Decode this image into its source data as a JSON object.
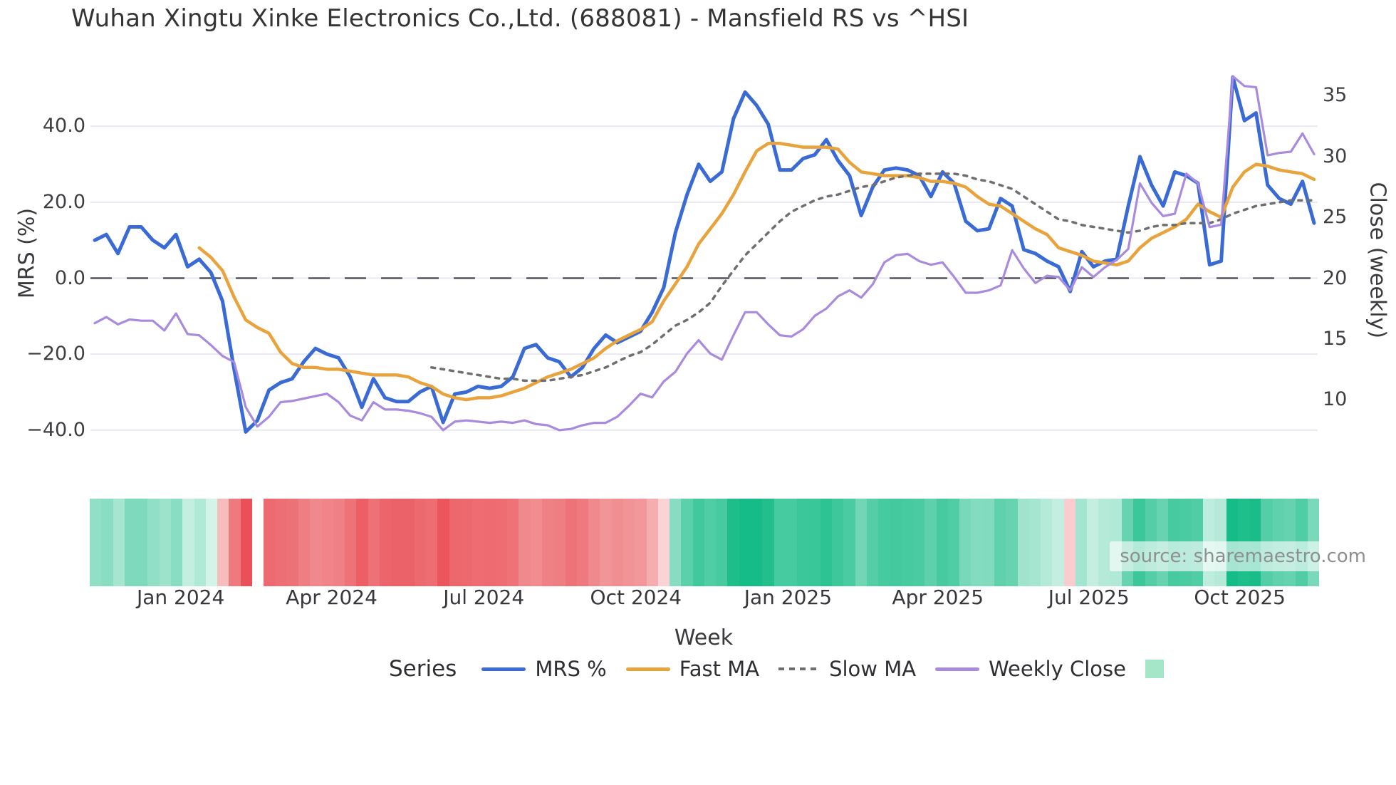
{
  "title": "Wuhan Xingtu Xinke Electronics Co.,Ltd. (688081) - Mansfield RS vs ^HSI",
  "watermark": "source: sharemaestro.com",
  "axes": {
    "left": {
      "title": "MRS (%)",
      "ticks": [
        {
          "label": "40.0",
          "value": 40
        },
        {
          "label": "20.0",
          "value": 20
        },
        {
          "label": "0.0",
          "value": 0
        },
        {
          "label": "−20.0",
          "value": -20
        },
        {
          "label": "−40.0",
          "value": -40
        }
      ]
    },
    "right": {
      "title": "Close (weekly)",
      "ticks": [
        {
          "label": "35",
          "value": 35
        },
        {
          "label": "30",
          "value": 30
        },
        {
          "label": "25",
          "value": 25
        },
        {
          "label": "20",
          "value": 20
        },
        {
          "label": "15",
          "value": 15
        },
        {
          "label": "10",
          "value": 10
        }
      ]
    },
    "x": {
      "title": "Week",
      "ticks": [
        {
          "label": "Jan 2024",
          "week": 7.4
        },
        {
          "label": "Apr 2024",
          "week": 20.4
        },
        {
          "label": "Jul 2024",
          "week": 33.5
        },
        {
          "label": "Oct 2024",
          "week": 46.6
        },
        {
          "label": "Jan 2025",
          "week": 59.7
        },
        {
          "label": "Apr 2025",
          "week": 72.6
        },
        {
          "label": "Jul 2025",
          "week": 85.6
        },
        {
          "label": "Oct 2025",
          "week": 98.6
        }
      ]
    }
  },
  "legend": {
    "title": "Series",
    "items": [
      {
        "label": "MRS %",
        "color": "#3A6BD5",
        "style": "line"
      },
      {
        "label": "Fast MA",
        "color": "#E8A33C",
        "style": "line"
      },
      {
        "label": "Slow MA",
        "color": "#6F6F6F",
        "style": "dotted"
      },
      {
        "label": "Weekly Close",
        "color": "#A88BDC",
        "style": "line"
      },
      {
        "label": "",
        "color": "#A5E6C9",
        "style": "square"
      }
    ]
  },
  "chart_data": {
    "type": "line",
    "title": "Wuhan Xingtu Xinke Electronics Co.,Ltd. (688081) - Mansfield RS vs ^HSI",
    "xlabel": "Week",
    "ylabel_left": "MRS (%)",
    "ylabel_right": "Close (weekly)",
    "x_unit": "weekly index, ~Nov 2023 to ~Nov 2025",
    "n_weeks": 106,
    "grid": true,
    "zero_line_left_axis": true,
    "legend_position": "bottom",
    "series": [
      {
        "name": "MRS %",
        "axis": "left",
        "color": "#3A6BD5",
        "width": 5,
        "style": "solid",
        "values": [
          10,
          11.5,
          6.5,
          13.5,
          13.5,
          10,
          8,
          11.5,
          3,
          5,
          1.5,
          -6,
          -24,
          -40.5,
          -37.5,
          -29.5,
          -27.5,
          -26.5,
          -22,
          -18.5,
          -20,
          -21,
          -26,
          -34,
          -26.5,
          -31.5,
          -32.5,
          -32.5,
          -30,
          -28.5,
          -38,
          -30.5,
          -30,
          -28.5,
          -29,
          -28.5,
          -26,
          -18.5,
          -17.5,
          -21,
          -22,
          -26,
          -23.5,
          -18.5,
          -15,
          -17,
          -15.5,
          -14,
          -9,
          -2.5,
          12,
          22,
          30,
          25.5,
          28,
          42,
          49,
          45.5,
          40.5,
          28.5,
          28.5,
          31.5,
          32.5,
          36.5,
          31,
          27,
          16.5,
          24,
          28.5,
          29,
          28.5,
          27,
          21.5,
          28,
          25,
          15,
          12.5,
          13,
          21,
          19,
          7.5,
          6.5,
          4.5,
          3,
          -3.5,
          7,
          3,
          4.5,
          5,
          19,
          32,
          24.5,
          19,
          28,
          27,
          25,
          3.5,
          4.5,
          53,
          41.5,
          43.5,
          24.5,
          21,
          19.5,
          25.5,
          14.5
        ]
      },
      {
        "name": "Fast MA",
        "axis": "left",
        "color": "#E8A33C",
        "width": 4.5,
        "style": "solid",
        "values": [
          null,
          null,
          null,
          null,
          null,
          null,
          null,
          null,
          null,
          8,
          5.5,
          2,
          -5,
          -11,
          -13,
          -14.5,
          -19.5,
          -22.5,
          -23.5,
          -23.5,
          -24,
          -24,
          -24.5,
          -25,
          -25.5,
          -25.5,
          -25.5,
          -26,
          -27.5,
          -28.5,
          -30.5,
          -31.5,
          -32,
          -31.5,
          -31.5,
          -31,
          -30,
          -29,
          -27.5,
          -26,
          -25,
          -24,
          -22.5,
          -21,
          -18.5,
          -16.5,
          -15,
          -13.5,
          -11.5,
          -6,
          -1.5,
          3,
          9,
          13,
          17,
          22,
          28,
          33.5,
          35.5,
          35.5,
          35,
          34.5,
          34.5,
          34.5,
          34,
          30.5,
          28,
          27.5,
          27,
          27,
          27,
          26.5,
          25.5,
          25.5,
          25,
          24,
          21.5,
          19.5,
          19,
          17,
          15,
          13,
          11.5,
          8,
          7,
          6,
          4.5,
          4,
          3.5,
          4.5,
          8,
          10.5,
          12,
          13.5,
          15.5,
          19.5,
          17.5,
          16,
          24,
          28,
          30,
          29.5,
          28.5,
          28,
          27.5,
          26
        ]
      },
      {
        "name": "Slow MA",
        "axis": "left",
        "color": "#6F6F6F",
        "width": 3.5,
        "style": "dotted",
        "values": [
          null,
          null,
          null,
          null,
          null,
          null,
          null,
          null,
          null,
          null,
          null,
          null,
          null,
          null,
          null,
          null,
          null,
          null,
          null,
          null,
          null,
          null,
          null,
          null,
          null,
          null,
          null,
          null,
          null,
          -23.5,
          -24,
          -24.5,
          -25,
          -25.5,
          -26,
          -26.5,
          -26.5,
          -27,
          -27,
          -27,
          -26.5,
          -26,
          -25.5,
          -24.5,
          -23.5,
          -22,
          -20.5,
          -19.5,
          -17.5,
          -15,
          -12.5,
          -11,
          -9,
          -6.5,
          -2,
          2,
          6,
          9,
          12,
          15,
          17.5,
          19,
          20.5,
          21.5,
          22,
          23,
          24,
          24.5,
          25.5,
          26.5,
          27,
          27.5,
          27.5,
          27.5,
          27.5,
          27,
          26,
          25.5,
          24.5,
          23.5,
          21.5,
          19.5,
          17.5,
          15.5,
          15,
          14,
          13.5,
          13,
          12.5,
          12,
          12.5,
          13.5,
          14,
          14,
          14.5,
          14.5,
          14.5,
          15.5,
          17,
          18,
          19,
          19.5,
          20,
          20.5,
          20.5,
          20.5
        ]
      },
      {
        "name": "Weekly Close",
        "axis": "right",
        "color": "#A88BDC",
        "width": 3.2,
        "style": "solid",
        "values": [
          16.3,
          16.8,
          16.2,
          16.6,
          16.5,
          16.5,
          15.7,
          17.1,
          15.4,
          15.3,
          14.5,
          13.6,
          13.1,
          9.4,
          7.8,
          8.6,
          9.8,
          9.9,
          10.1,
          10.3,
          10.5,
          9.8,
          8.7,
          8.3,
          9.8,
          9.2,
          9.2,
          9.1,
          8.9,
          8.6,
          7.5,
          8.2,
          8.3,
          8.2,
          8.1,
          8.2,
          8.1,
          8.3,
          8.0,
          7.9,
          7.5,
          7.6,
          7.9,
          8.1,
          8.1,
          8.6,
          9.5,
          10.5,
          10.2,
          11.5,
          12.3,
          13.8,
          14.9,
          13.8,
          13.3,
          15.3,
          17.2,
          17.2,
          16.2,
          15.3,
          15.2,
          15.8,
          16.9,
          17.5,
          18.5,
          19.0,
          18.4,
          19.5,
          21.3,
          21.9,
          22.0,
          21.4,
          21.1,
          21.3,
          20.1,
          18.8,
          18.8,
          19.0,
          19.4,
          22.3,
          20.8,
          19.6,
          20.2,
          20.1,
          19.0,
          20.9,
          20.1,
          20.9,
          21.5,
          22.4,
          27.8,
          26.2,
          25.1,
          25.3,
          28.6,
          27.8,
          24.2,
          24.4,
          36.6,
          35.8,
          35.7,
          30.1,
          30.3,
          30.4,
          31.9,
          30.2
        ]
      }
    ],
    "heatmap_strip": {
      "description": "weekly color band below chart, color encodes MRS % sign/magnitude (green positive, red negative, white missing)",
      "values_from_series": "MRS %",
      "missing_weeks": [
        14
      ],
      "positive_color": "#16BC87",
      "negative_color": "#E8474E",
      "scale_abs_max": 45
    },
    "ylim_left": [
      -46,
      56
    ],
    "right_axis_alignment": "Close 20 aligns with MRS 0"
  }
}
